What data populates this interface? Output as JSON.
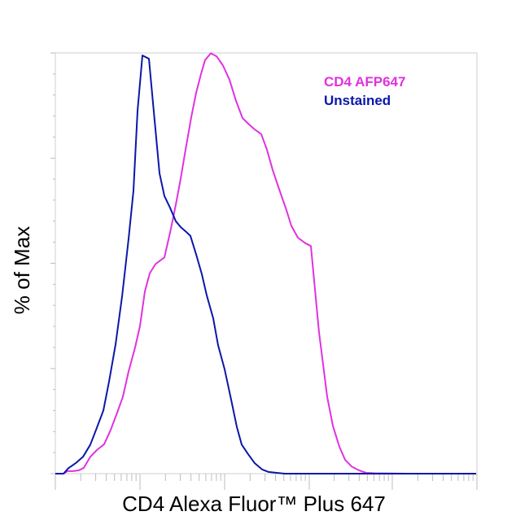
{
  "colors": {
    "cd4": "#e032e0",
    "unstained": "#0a18a8",
    "frame": "#cfcfcf",
    "ticks": "#bdbdbd"
  },
  "chart_data": {
    "type": "line",
    "xlabel": "CD4 Alexa Fluor™ Plus 647",
    "ylabel": "% of Max",
    "ylim": [
      0,
      100
    ],
    "grid": false,
    "x_scale": "log",
    "legend_position": "top-right",
    "series": [
      {
        "name": "CD4 AFP647",
        "color": "#e032e0",
        "points": [
          [
            68,
            0.0
          ],
          [
            78,
            0.0
          ],
          [
            83,
            0.6
          ],
          [
            90,
            0.6
          ],
          [
            97,
            0.8
          ],
          [
            103,
            1.4
          ],
          [
            111,
            4.0
          ],
          [
            119,
            5.6
          ],
          [
            128,
            7.0
          ],
          [
            136,
            10.4
          ],
          [
            144,
            14.5
          ],
          [
            151,
            18.3
          ],
          [
            158,
            24.3
          ],
          [
            166,
            30.0
          ],
          [
            172,
            35.1
          ],
          [
            178,
            43.3
          ],
          [
            184,
            47.6
          ],
          [
            191,
            49.8
          ],
          [
            202,
            51.4
          ],
          [
            210,
            58.2
          ],
          [
            216,
            63.9
          ],
          [
            222,
            70.1
          ],
          [
            228,
            77.0
          ],
          [
            235,
            84.7
          ],
          [
            241,
            90.5
          ],
          [
            247,
            95.0
          ],
          [
            252,
            98.3
          ],
          [
            259,
            99.9
          ],
          [
            266,
            99.2
          ],
          [
            274,
            97.0
          ],
          [
            282,
            93.6
          ],
          [
            290,
            88.6
          ],
          [
            298,
            84.5
          ],
          [
            306,
            83.0
          ],
          [
            313,
            81.8
          ],
          [
            321,
            80.7
          ],
          [
            328,
            77.0
          ],
          [
            335,
            72.2
          ],
          [
            343,
            67.6
          ],
          [
            351,
            63.2
          ],
          [
            358,
            58.9
          ],
          [
            366,
            56.1
          ],
          [
            375,
            54.8
          ],
          [
            382,
            54.1
          ],
          [
            392,
            33.6
          ],
          [
            402,
            18.3
          ],
          [
            409,
            11.4
          ],
          [
            417,
            6.4
          ],
          [
            424,
            3.3
          ],
          [
            432,
            1.7
          ],
          [
            441,
            0.8
          ],
          [
            450,
            0.2
          ],
          [
            460,
            0.1
          ],
          [
            500,
            0.0
          ],
          [
            585,
            0.0
          ]
        ]
      },
      {
        "name": "Unstained",
        "color": "#0a18a8",
        "points": [
          [
            68,
            0.0
          ],
          [
            78,
            0.0
          ],
          [
            84,
            1.3
          ],
          [
            93,
            2.5
          ],
          [
            102,
            4.0
          ],
          [
            111,
            6.9
          ],
          [
            119,
            10.9
          ],
          [
            127,
            15.0
          ],
          [
            134,
            21.9
          ],
          [
            142,
            30.7
          ],
          [
            150,
            42.1
          ],
          [
            158,
            55.8
          ],
          [
            164,
            67.3
          ],
          [
            169,
            86.2
          ],
          [
            175,
            99.4
          ],
          [
            183,
            98.6
          ],
          [
            189,
            86.0
          ],
          [
            196,
            71.4
          ],
          [
            202,
            66.0
          ],
          [
            209,
            63.2
          ],
          [
            216,
            60.0
          ],
          [
            222,
            58.6
          ],
          [
            228,
            57.6
          ],
          [
            234,
            56.5
          ],
          [
            241,
            52.1
          ],
          [
            248,
            47.4
          ],
          [
            254,
            42.4
          ],
          [
            262,
            36.9
          ],
          [
            268,
            30.5
          ],
          [
            276,
            24.8
          ],
          [
            284,
            17.6
          ],
          [
            291,
            11.1
          ],
          [
            297,
            6.9
          ],
          [
            305,
            4.6
          ],
          [
            313,
            2.5
          ],
          [
            322,
            1.0
          ],
          [
            330,
            0.4
          ],
          [
            340,
            0.2
          ],
          [
            350,
            0.0
          ],
          [
            585,
            0.0
          ]
        ]
      }
    ]
  }
}
